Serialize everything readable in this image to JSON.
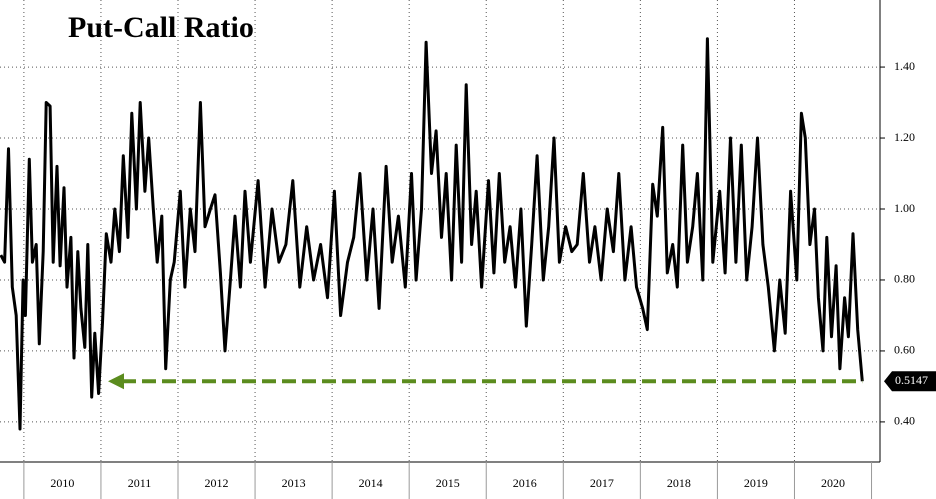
{
  "chart_data": {
    "type": "line",
    "title": "Put-Call Ratio",
    "x": [
      2009.7,
      2009.75,
      2009.8,
      2009.85,
      2009.9,
      2009.95,
      2009.99,
      2010.02,
      2010.07,
      2010.11,
      2010.16,
      2010.2,
      2010.25,
      2010.29,
      2010.34,
      2010.38,
      2010.43,
      2010.47,
      2010.52,
      2010.56,
      2010.61,
      2010.65,
      2010.7,
      2010.74,
      2010.79,
      2010.83,
      2010.88,
      2010.92,
      2010.97,
      2011.02,
      2011.07,
      2011.13,
      2011.18,
      2011.24,
      2011.29,
      2011.35,
      2011.4,
      2011.46,
      2011.51,
      2011.57,
      2011.62,
      2011.68,
      2011.73,
      2011.79,
      2011.84,
      2011.9,
      2011.95,
      2012.03,
      2012.09,
      2012.16,
      2012.22,
      2012.29,
      2012.35,
      2012.42,
      2012.48,
      2012.55,
      2012.61,
      2012.68,
      2012.74,
      2012.81,
      2012.87,
      2012.94,
      2013.04,
      2013.13,
      2013.22,
      2013.31,
      2013.4,
      2013.49,
      2013.58,
      2013.67,
      2013.76,
      2013.85,
      2013.94,
      2014.03,
      2014.11,
      2014.2,
      2014.28,
      2014.36,
      2014.45,
      2014.53,
      2014.61,
      2014.7,
      2014.78,
      2014.86,
      2014.95,
      2015.03,
      2015.09,
      2015.16,
      2015.22,
      2015.29,
      2015.35,
      2015.42,
      2015.48,
      2015.55,
      2015.61,
      2015.68,
      2015.74,
      2015.81,
      2015.87,
      2015.94,
      2016.03,
      2016.1,
      2016.17,
      2016.24,
      2016.31,
      2016.38,
      2016.45,
      2016.52,
      2016.59,
      2016.66,
      2016.74,
      2016.81,
      2016.88,
      2016.95,
      2017.03,
      2017.11,
      2017.18,
      2017.26,
      2017.34,
      2017.41,
      2017.49,
      2017.57,
      2017.65,
      2017.72,
      2017.8,
      2017.88,
      2017.95,
      2018.03,
      2018.09,
      2018.16,
      2018.22,
      2018.29,
      2018.35,
      2018.42,
      2018.48,
      2018.55,
      2018.61,
      2018.68,
      2018.74,
      2018.81,
      2018.87,
      2018.94,
      2019.03,
      2019.1,
      2019.17,
      2019.24,
      2019.31,
      2019.38,
      2019.45,
      2019.52,
      2019.59,
      2019.66,
      2019.74,
      2019.81,
      2019.88,
      2019.95,
      2020.03,
      2020.09,
      2020.14,
      2020.2,
      2020.26,
      2020.31,
      2020.37,
      2020.42,
      2020.48,
      2020.54,
      2020.59,
      2020.65,
      2020.7,
      2020.76,
      2020.82,
      2020.88
    ],
    "values": [
      0.87,
      0.85,
      1.17,
      0.78,
      0.7,
      0.38,
      0.8,
      0.7,
      1.14,
      0.85,
      0.9,
      0.62,
      0.88,
      1.3,
      1.29,
      0.85,
      1.12,
      0.84,
      1.06,
      0.78,
      0.92,
      0.58,
      0.88,
      0.72,
      0.61,
      0.9,
      0.47,
      0.65,
      0.48,
      0.68,
      0.93,
      0.85,
      1.0,
      0.88,
      1.15,
      0.92,
      1.27,
      1.0,
      1.3,
      1.05,
      1.2,
      1.0,
      0.85,
      0.98,
      0.55,
      0.8,
      0.85,
      1.05,
      0.78,
      1.0,
      0.88,
      1.3,
      0.95,
      1.0,
      1.04,
      0.82,
      0.6,
      0.8,
      0.98,
      0.78,
      1.05,
      0.85,
      1.08,
      0.78,
      1.0,
      0.85,
      0.9,
      1.08,
      0.78,
      0.95,
      0.8,
      0.9,
      0.75,
      1.05,
      0.7,
      0.85,
      0.92,
      1.1,
      0.8,
      1.0,
      0.72,
      1.12,
      0.85,
      0.98,
      0.78,
      1.1,
      0.8,
      1.0,
      1.47,
      1.1,
      1.22,
      0.92,
      1.1,
      0.8,
      1.18,
      0.85,
      1.35,
      0.9,
      1.05,
      0.78,
      1.08,
      0.82,
      1.1,
      0.85,
      0.95,
      0.78,
      1.0,
      0.67,
      0.9,
      1.15,
      0.8,
      0.95,
      1.2,
      0.85,
      0.95,
      0.88,
      0.9,
      1.1,
      0.85,
      0.95,
      0.8,
      1.0,
      0.88,
      1.1,
      0.8,
      0.95,
      0.78,
      0.72,
      0.66,
      1.07,
      0.98,
      1.23,
      0.82,
      0.9,
      0.78,
      1.18,
      0.85,
      0.95,
      1.1,
      0.8,
      1.48,
      0.85,
      1.05,
      0.82,
      1.2,
      0.85,
      1.18,
      0.8,
      0.95,
      1.2,
      0.9,
      0.78,
      0.6,
      0.8,
      0.65,
      1.05,
      0.8,
      1.27,
      1.2,
      0.9,
      1.0,
      0.75,
      0.6,
      0.92,
      0.64,
      0.84,
      0.55,
      0.75,
      0.64,
      0.93,
      0.66,
      0.5147
    ],
    "last_value_label": "0.5147",
    "color": "#000000",
    "arrow_color": "#5b8c1e",
    "xlim": [
      2009.69,
      2021.11
    ],
    "xticks": [
      {
        "value": 2010.5,
        "label": "2010"
      },
      {
        "value": 2011.5,
        "label": "2011"
      },
      {
        "value": 2012.5,
        "label": "2012"
      },
      {
        "value": 2013.5,
        "label": "2013"
      },
      {
        "value": 2014.5,
        "label": "2014"
      },
      {
        "value": 2015.5,
        "label": "2015"
      },
      {
        "value": 2016.5,
        "label": "2016"
      },
      {
        "value": 2017.5,
        "label": "2017"
      },
      {
        "value": 2018.5,
        "label": "2018"
      },
      {
        "value": 2019.5,
        "label": "2019"
      },
      {
        "value": 2020.5,
        "label": "2020"
      }
    ],
    "ylim": [
      0.287,
      1.589
    ],
    "yticks": [
      {
        "value": 0.4,
        "label": "0.40"
      },
      {
        "value": 0.6,
        "label": "0.60"
      },
      {
        "value": 0.8,
        "label": "0.80"
      },
      {
        "value": 1.0,
        "label": "1.00"
      },
      {
        "value": 1.2,
        "label": "1.20"
      },
      {
        "value": 1.4,
        "label": "1.40"
      }
    ],
    "grid": true
  }
}
